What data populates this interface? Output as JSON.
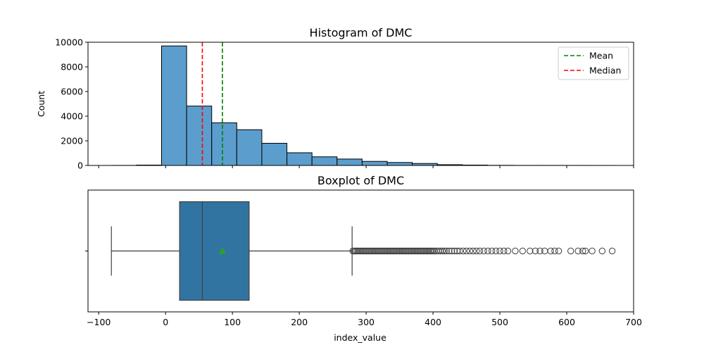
{
  "chart_data": [
    {
      "type": "bar",
      "title": "Histogram of DMC",
      "xlabel": "",
      "ylabel": "Count",
      "xlim": [
        -116,
        700
      ],
      "ylim": [
        0,
        10000
      ],
      "xticks": [
        -100,
        0,
        100,
        200,
        300,
        400,
        500,
        600,
        700
      ],
      "yticks": [
        0,
        2000,
        4000,
        6000,
        8000,
        10000
      ],
      "ytick_labels": [
        "0",
        "2000",
        "4000",
        "6000",
        "8000",
        "10000"
      ],
      "x_tick_labels_shown": false,
      "grid": false,
      "bins": [
        {
          "x0": -81,
          "x1": -43.5,
          "count": 5
        },
        {
          "x0": -43.5,
          "x1": -6,
          "count": 30
        },
        {
          "x0": -6,
          "x1": 31.5,
          "count": 9700
        },
        {
          "x0": 31.5,
          "x1": 69,
          "count": 4820
        },
        {
          "x0": 69,
          "x1": 106.5,
          "count": 3460
        },
        {
          "x0": 106.5,
          "x1": 144,
          "count": 2900
        },
        {
          "x0": 144,
          "x1": 181.5,
          "count": 1800
        },
        {
          "x0": 181.5,
          "x1": 219,
          "count": 1030
        },
        {
          "x0": 219,
          "x1": 256.5,
          "count": 700
        },
        {
          "x0": 256.5,
          "x1": 294,
          "count": 520
        },
        {
          "x0": 294,
          "x1": 331.5,
          "count": 330
        },
        {
          "x0": 331.5,
          "x1": 369,
          "count": 240
        },
        {
          "x0": 369,
          "x1": 406.5,
          "count": 160
        },
        {
          "x0": 406.5,
          "x1": 444,
          "count": 60
        },
        {
          "x0": 444,
          "x1": 481.5,
          "count": 30
        },
        {
          "x0": 481.5,
          "x1": 519,
          "count": 10
        },
        {
          "x0": 519,
          "x1": 556.5,
          "count": 5
        },
        {
          "x0": 556.5,
          "x1": 594,
          "count": 5
        },
        {
          "x0": 594,
          "x1": 631.5,
          "count": 3
        },
        {
          "x0": 631.5,
          "x1": 669,
          "count": 2
        }
      ],
      "bar_color": "#5b9dcd",
      "bar_edge": "#000000",
      "lines": [
        {
          "name": "Mean",
          "x": 85,
          "color": "#008000",
          "style": "dashed"
        },
        {
          "name": "Median",
          "x": 55,
          "color": "#ff0000",
          "style": "dashed"
        }
      ],
      "legend": {
        "position": "top-right",
        "entries": [
          "Mean",
          "Median"
        ]
      }
    },
    {
      "type": "boxplot",
      "title": "Boxplot of DMC",
      "xlabel": "index_value",
      "ylabel": "",
      "xlim": [
        -116,
        700
      ],
      "xticks": [
        -100,
        0,
        100,
        200,
        300,
        400,
        500,
        600,
        700
      ],
      "xtick_labels": [
        "−100",
        "0",
        "100",
        "200",
        "300",
        "400",
        "500",
        "600",
        "700"
      ],
      "box_color": "#3274a1",
      "line_color": "#3f3f3f",
      "mean_color": "#2ca02c",
      "stats": {
        "whisker_low": -81,
        "q1": 21,
        "median": 55,
        "q3": 125,
        "whisker_high": 279,
        "mean": 85
      },
      "outliers": [
        280,
        282,
        284,
        286,
        288,
        290,
        292,
        294,
        296,
        298,
        300,
        302,
        304,
        306,
        308,
        310,
        312,
        314,
        316,
        318,
        320,
        322,
        324,
        326,
        328,
        330,
        332,
        334,
        336,
        338,
        340,
        342,
        344,
        346,
        348,
        350,
        352,
        354,
        356,
        358,
        360,
        362,
        364,
        366,
        368,
        370,
        372,
        374,
        376,
        378,
        380,
        382,
        384,
        386,
        388,
        390,
        392,
        394,
        396,
        398,
        400,
        402,
        405,
        408,
        411,
        414,
        417,
        420,
        424,
        428,
        432,
        436,
        440,
        445,
        450,
        455,
        460,
        465,
        470,
        476,
        482,
        488,
        494,
        500,
        506,
        512,
        523,
        534,
        545,
        553,
        560,
        567,
        576,
        582,
        588,
        606,
        617,
        624,
        628,
        638,
        653,
        668
      ]
    }
  ]
}
